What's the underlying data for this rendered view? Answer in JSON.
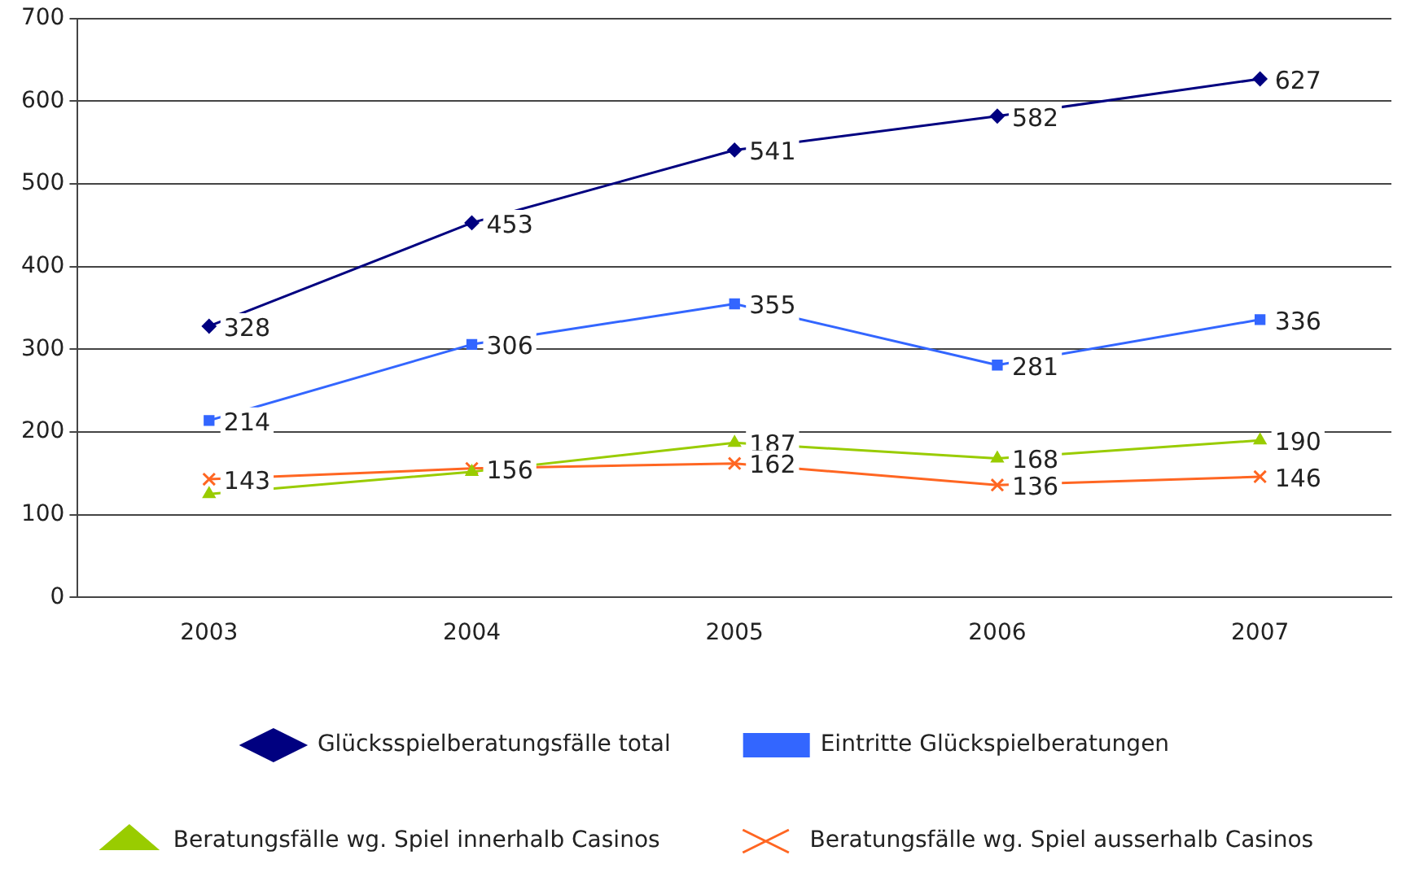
{
  "chart_data": {
    "type": "line",
    "categories": [
      "2003",
      "2004",
      "2005",
      "2006",
      "2007"
    ],
    "ylim": [
      0,
      700
    ],
    "yticks": [
      0,
      100,
      200,
      300,
      400,
      500,
      600,
      700
    ],
    "grid": "y",
    "legend": "bottom",
    "series": [
      {
        "name": "Glücksspielberatungsfälle total",
        "color": "#000080",
        "marker": "diamond",
        "values": [
          328,
          453,
          541,
          582,
          627
        ],
        "value_labels": [
          "328",
          "453",
          "541",
          "582",
          "627"
        ]
      },
      {
        "name": "Eintritte Glückspielberatungen",
        "color": "#3366ff",
        "marker": "square",
        "values": [
          214,
          306,
          355,
          281,
          336
        ],
        "value_labels": [
          "214",
          "306",
          "355",
          "281",
          "336"
        ]
      },
      {
        "name": "Beratungsfälle wg. Spiel innerhalb Casinos",
        "color": "#99cc00",
        "marker": "triangle",
        "values": [
          125,
          152,
          187,
          168,
          190
        ],
        "value_labels": [
          null,
          null,
          "187",
          "168",
          "190"
        ]
      },
      {
        "name": "Beratungsfälle wg. Spiel ausserhalb Casinos",
        "color": "#ff6622",
        "marker": "cross",
        "values": [
          143,
          156,
          162,
          136,
          146
        ],
        "value_labels": [
          "143",
          "156",
          "162",
          "136",
          "146"
        ]
      }
    ]
  }
}
